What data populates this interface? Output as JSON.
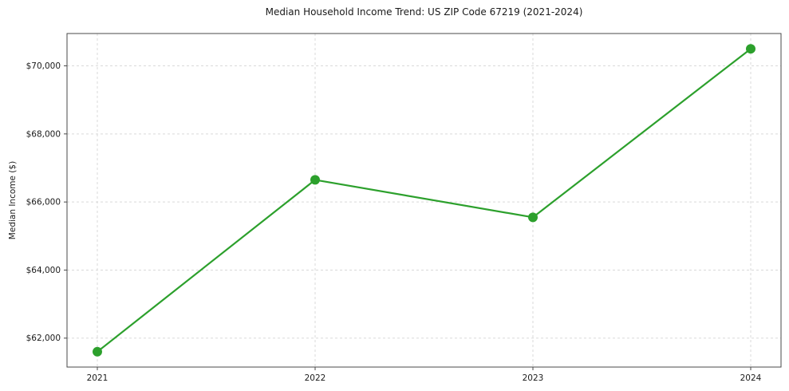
{
  "chart_data": {
    "type": "line",
    "title": "Median Household Income Trend: US ZIP Code 67219 (2021-2024)",
    "xlabel": "",
    "ylabel": "Median Income ($)",
    "x": [
      2021,
      2022,
      2023,
      2024
    ],
    "xtick_labels": [
      "2021",
      "2022",
      "2023",
      "2024"
    ],
    "series": [
      {
        "name": "Median Household Income",
        "values": [
          61600,
          66650,
          65550,
          70500
        ]
      }
    ],
    "ylim": [
      61150,
      70950
    ],
    "yticks": [
      62000,
      64000,
      66000,
      68000,
      70000
    ],
    "ytick_labels": [
      "$62,000",
      "$64,000",
      "$66,000",
      "$68,000",
      "$70,000"
    ],
    "line_color": "#2ca02c",
    "marker": "circle",
    "marker_color": "#2ca02c",
    "grid": "dashed",
    "grid_color": "#d9d9d9",
    "legend_position": "none",
    "background_color": "#ffffff"
  }
}
